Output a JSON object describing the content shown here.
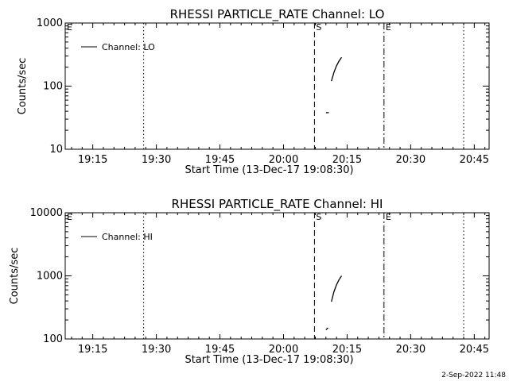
{
  "footer": {
    "timestamp": "2-Sep-2022 11:48"
  },
  "chart_data": [
    {
      "type": "line",
      "title": "RHESSI PARTICLE_RATE Channel: LO",
      "xlabel": "Start Time (13-Dec-17 19:08:30)",
      "ylabel": "Counts/sec",
      "yscale": "log",
      "ylim": [
        10,
        1000
      ],
      "xlim_minutes": [
        0,
        100
      ],
      "x_ticks": [
        {
          "label": "19:15",
          "m": 6.5
        },
        {
          "label": "19:30",
          "m": 21.5
        },
        {
          "label": "19:45",
          "m": 36.5
        },
        {
          "label": "20:00",
          "m": 51.5
        },
        {
          "label": "20:15",
          "m": 66.5
        },
        {
          "label": "20:30",
          "m": 81.5
        },
        {
          "label": "20:45",
          "m": 96.5
        }
      ],
      "y_ticks": [
        {
          "label": "10",
          "v": 10
        },
        {
          "label": "100",
          "v": 100
        },
        {
          "label": "1000",
          "v": 1000
        }
      ],
      "legend": {
        "label": "Channel: LO",
        "position": "top-left"
      },
      "markers": [
        {
          "label": "E",
          "m": 0,
          "style": "none"
        },
        {
          "label": "",
          "m": 18.5,
          "style": "dotted"
        },
        {
          "label": "S",
          "m": 58.8,
          "style": "dashed"
        },
        {
          "label": "E",
          "m": 75.2,
          "style": "dashdot"
        },
        {
          "label": "",
          "m": 94.0,
          "style": "dotted"
        }
      ],
      "series": [
        {
          "points": [
            [
              61.5,
              38
            ],
            [
              62.2,
              38
            ]
          ]
        },
        {
          "points": [
            [
              62.8,
              120
            ],
            [
              63.4,
              165
            ],
            [
              64.0,
              210
            ],
            [
              64.6,
              250
            ],
            [
              65.2,
              285
            ]
          ]
        }
      ]
    },
    {
      "type": "line",
      "title": "RHESSI PARTICLE_RATE Channel: HI",
      "xlabel": "Start Time (13-Dec-17 19:08:30)",
      "ylabel": "Counts/sec",
      "yscale": "log",
      "ylim": [
        100,
        10000
      ],
      "xlim_minutes": [
        0,
        100
      ],
      "x_ticks": [
        {
          "label": "19:15",
          "m": 6.5
        },
        {
          "label": "19:30",
          "m": 21.5
        },
        {
          "label": "19:45",
          "m": 36.5
        },
        {
          "label": "20:00",
          "m": 51.5
        },
        {
          "label": "20:15",
          "m": 66.5
        },
        {
          "label": "20:30",
          "m": 81.5
        },
        {
          "label": "20:45",
          "m": 96.5
        }
      ],
      "y_ticks": [
        {
          "label": "100",
          "v": 100
        },
        {
          "label": "1000",
          "v": 1000
        },
        {
          "label": "10000",
          "v": 10000
        }
      ],
      "legend": {
        "label": "Channel: HI",
        "position": "top-left"
      },
      "markers": [
        {
          "label": "E",
          "m": 0,
          "style": "none"
        },
        {
          "label": "",
          "m": 18.5,
          "style": "dotted"
        },
        {
          "label": "S",
          "m": 58.8,
          "style": "dashed"
        },
        {
          "label": "E",
          "m": 75.2,
          "style": "dashdot"
        },
        {
          "label": "",
          "m": 94.0,
          "style": "dotted"
        }
      ],
      "series": [
        {
          "points": [
            [
              61.5,
              140
            ],
            [
              62.0,
              150
            ]
          ]
        },
        {
          "points": [
            [
              62.8,
              390
            ],
            [
              63.4,
              560
            ],
            [
              64.0,
              720
            ],
            [
              64.6,
              870
            ],
            [
              65.2,
              1000
            ]
          ]
        }
      ]
    }
  ]
}
